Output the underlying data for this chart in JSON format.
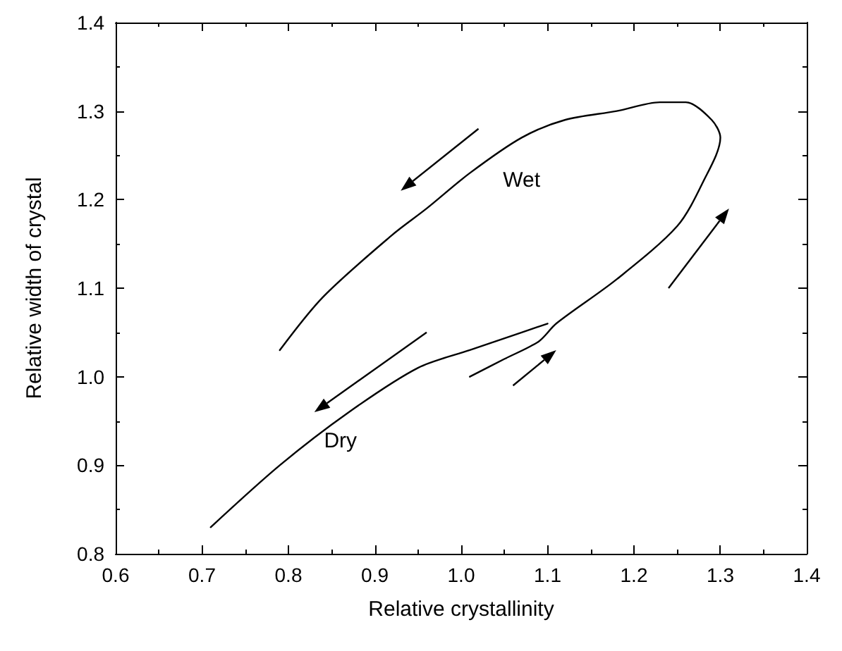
{
  "chart_data": {
    "type": "line",
    "xlabel": "Relative crystallinity",
    "ylabel": "Relative width of crystal",
    "xlim": [
      0.6,
      1.4
    ],
    "xticks": [
      0.6,
      0.7,
      0.8,
      0.9,
      {
        "value": 1,
        "label": "1.0"
      },
      1.1,
      1.2,
      1.3,
      1.4
    ],
    "ylim": [
      0.8,
      1.4
    ],
    "yticks": [
      0.8,
      0.9,
      {
        "value": 1,
        "label": "1.0"
      },
      1.1,
      1.2,
      1.3,
      1.4
    ],
    "grid": false,
    "marker": "none",
    "line_style": "solid",
    "series": [
      {
        "name": "Wet",
        "color": "#000000",
        "x": [
          1.01,
          1.05,
          1.09,
          1.11,
          1.18,
          1.25,
          1.28,
          1.3,
          1.29,
          1.26,
          1.23,
          1.18,
          1.12,
          1.07,
          1.01,
          0.96,
          0.92,
          0.84,
          0.79
        ],
        "values": [
          1.0,
          1.02,
          1.04,
          1.06,
          1.11,
          1.17,
          1.22,
          1.27,
          1.29,
          1.31,
          1.31,
          1.3,
          1.29,
          1.27,
          1.23,
          1.19,
          1.16,
          1.09,
          1.03
        ]
      },
      {
        "name": "Dry",
        "color": "#000000",
        "x": [
          1.1,
          1.07,
          1.01,
          0.95,
          0.87,
          0.79,
          0.71
        ],
        "values": [
          1.06,
          1.05,
          1.03,
          1.01,
          0.96,
          0.9,
          0.83
        ]
      }
    ]
  }
}
